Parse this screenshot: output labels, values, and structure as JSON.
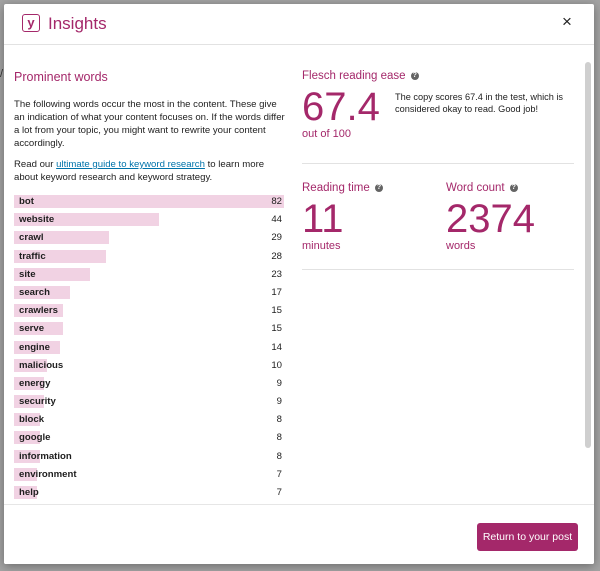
{
  "modal": {
    "title": "Insights",
    "logo_glyph": "y",
    "close_glyph": "×"
  },
  "prominent": {
    "heading": "Prominent words",
    "intro": "The following words occur the most in the content. These give an indication of what your content focuses on. If the words differ a lot from your topic, you might want to rewrite your content accordingly.",
    "read_prefix": "Read our ",
    "read_link": "ultimate guide to keyword research",
    "read_suffix": " to learn more about keyword research and keyword strategy.",
    "words": [
      {
        "word": "bot",
        "count": "82"
      },
      {
        "word": "website",
        "count": "44"
      },
      {
        "word": "crawl",
        "count": "29"
      },
      {
        "word": "traffic",
        "count": "28"
      },
      {
        "word": "site",
        "count": "23"
      },
      {
        "word": "search",
        "count": "17"
      },
      {
        "word": "crawlers",
        "count": "15"
      },
      {
        "word": "serve",
        "count": "15"
      },
      {
        "word": "engine",
        "count": "14"
      },
      {
        "word": "malicious",
        "count": "10"
      },
      {
        "word": "energy",
        "count": "9"
      },
      {
        "word": "security",
        "count": "9"
      },
      {
        "word": "block",
        "count": "8"
      },
      {
        "word": "google",
        "count": "8"
      },
      {
        "word": "information",
        "count": "8"
      },
      {
        "word": "environment",
        "count": "7"
      },
      {
        "word": "help",
        "count": "7"
      }
    ]
  },
  "flesch": {
    "title": "Flesch reading ease",
    "score": "67.4",
    "out_of": "out of 100",
    "description": "The copy scores 67.4 in the test, which is considered okay to read. Good job!"
  },
  "reading_time": {
    "title": "Reading time",
    "value": "11",
    "unit": "minutes"
  },
  "word_count": {
    "title": "Word count",
    "value": "2374",
    "unit": "words"
  },
  "footer": {
    "return_button": "Return to your post"
  },
  "colors": {
    "accent": "#a4286a",
    "bar": "#f1d2e3",
    "link": "#0073aa"
  }
}
